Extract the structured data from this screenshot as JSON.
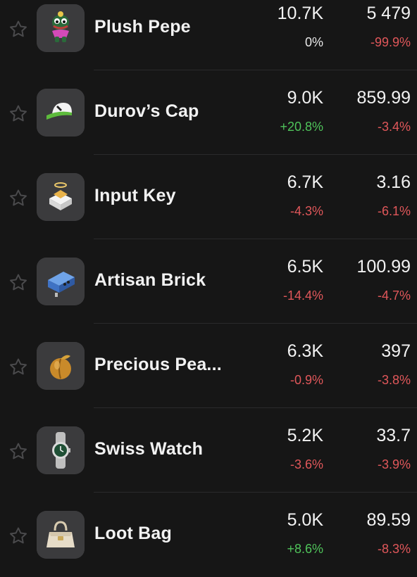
{
  "items": [
    {
      "name": "Plush Pepe",
      "volume": "10.7K",
      "volume_change": "0%",
      "volume_change_tone": "neutral",
      "price": "5 479",
      "price_change": "-99.9%",
      "price_change_tone": "neg",
      "icon": "plush-pepe-icon"
    },
    {
      "name": "Durov’s Cap",
      "volume": "9.0K",
      "volume_change": "+20.8%",
      "volume_change_tone": "pos",
      "price": "859.99",
      "price_change": "-3.4%",
      "price_change_tone": "neg",
      "icon": "cap-icon"
    },
    {
      "name": "Input Key",
      "volume": "6.7K",
      "volume_change": "-4.3%",
      "volume_change_tone": "neg",
      "price": "3.16",
      "price_change": "-6.1%",
      "price_change_tone": "neg",
      "icon": "keycap-icon"
    },
    {
      "name": "Artisan Brick",
      "volume": "6.5K",
      "volume_change": "-14.4%",
      "volume_change_tone": "neg",
      "price": "100.99",
      "price_change": "-4.7%",
      "price_change_tone": "neg",
      "icon": "brick-icon"
    },
    {
      "name": "Precious Pea...",
      "volume": "6.3K",
      "volume_change": "-0.9%",
      "volume_change_tone": "neg",
      "price": "397",
      "price_change": "-3.8%",
      "price_change_tone": "neg",
      "icon": "peach-icon"
    },
    {
      "name": "Swiss Watch",
      "volume": "5.2K",
      "volume_change": "-3.6%",
      "volume_change_tone": "neg",
      "price": "33.7",
      "price_change": "-3.9%",
      "price_change_tone": "neg",
      "icon": "watch-icon"
    },
    {
      "name": "Loot Bag",
      "volume": "5.0K",
      "volume_change": "+8.6%",
      "volume_change_tone": "pos",
      "price": "89.59",
      "price_change": "-8.3%",
      "price_change_tone": "neg",
      "icon": "bag-icon"
    }
  ],
  "colors": {
    "background": "#161616",
    "thumb_background": "#3b3b3d",
    "negative": "#e0575a",
    "positive": "#4fc35a",
    "neutral": "#e8e8e8"
  }
}
